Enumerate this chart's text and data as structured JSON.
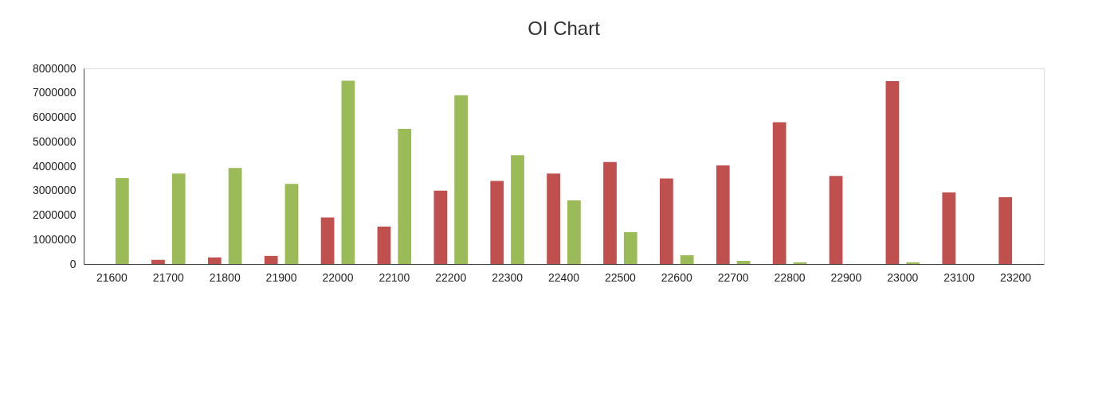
{
  "chart_data": {
    "type": "bar",
    "title": "OI Chart",
    "categories": [
      "21600",
      "21700",
      "21800",
      "21900",
      "22000",
      "22100",
      "22200",
      "22300",
      "22400",
      "22500",
      "22600",
      "22700",
      "22800",
      "22900",
      "23000",
      "23100",
      "23200"
    ],
    "series": [
      {
        "color": "#c0504d",
        "values": [
          0,
          170000,
          270000,
          330000,
          1900000,
          1530000,
          3000000,
          3400000,
          3700000,
          4170000,
          3500000,
          4030000,
          5800000,
          3600000,
          7480000,
          2930000,
          2730000
        ]
      },
      {
        "color": "#9bbb59",
        "values": [
          3510000,
          3700000,
          3930000,
          3280000,
          7500000,
          5530000,
          6900000,
          4450000,
          2600000,
          1300000,
          360000,
          130000,
          70000,
          0,
          70000,
          0,
          0
        ]
      }
    ],
    "ylim": [
      0,
      8000000
    ],
    "yticks": [
      0,
      1000000,
      2000000,
      3000000,
      4000000,
      5000000,
      6000000,
      7000000,
      8000000
    ],
    "grid": false
  }
}
